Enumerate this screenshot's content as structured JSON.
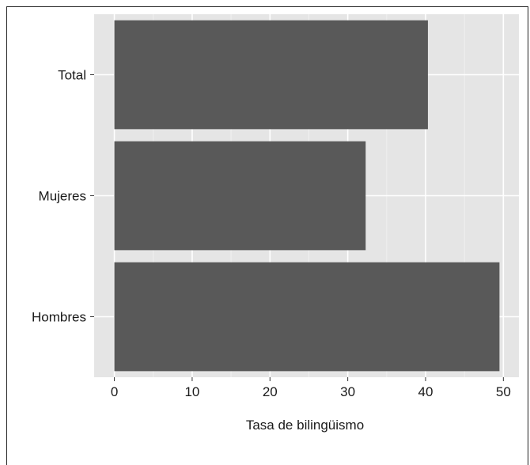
{
  "chart_data": {
    "type": "bar",
    "orientation": "horizontal",
    "categories": [
      "Total",
      "Mujeres",
      "Hombres"
    ],
    "values": [
      40.3,
      32.3,
      49.5
    ],
    "xlabel": "Tasa de bilingüismo",
    "ylabel": "",
    "xlim": [
      -2.6,
      52
    ],
    "xticks": [
      0,
      10,
      20,
      30,
      40,
      50
    ],
    "grid": true,
    "colors": {
      "panel_bg": "#e5e5e5",
      "grid_major": "#ffffff",
      "grid_minor": "#f0f0f0",
      "bar": "#595959"
    }
  }
}
